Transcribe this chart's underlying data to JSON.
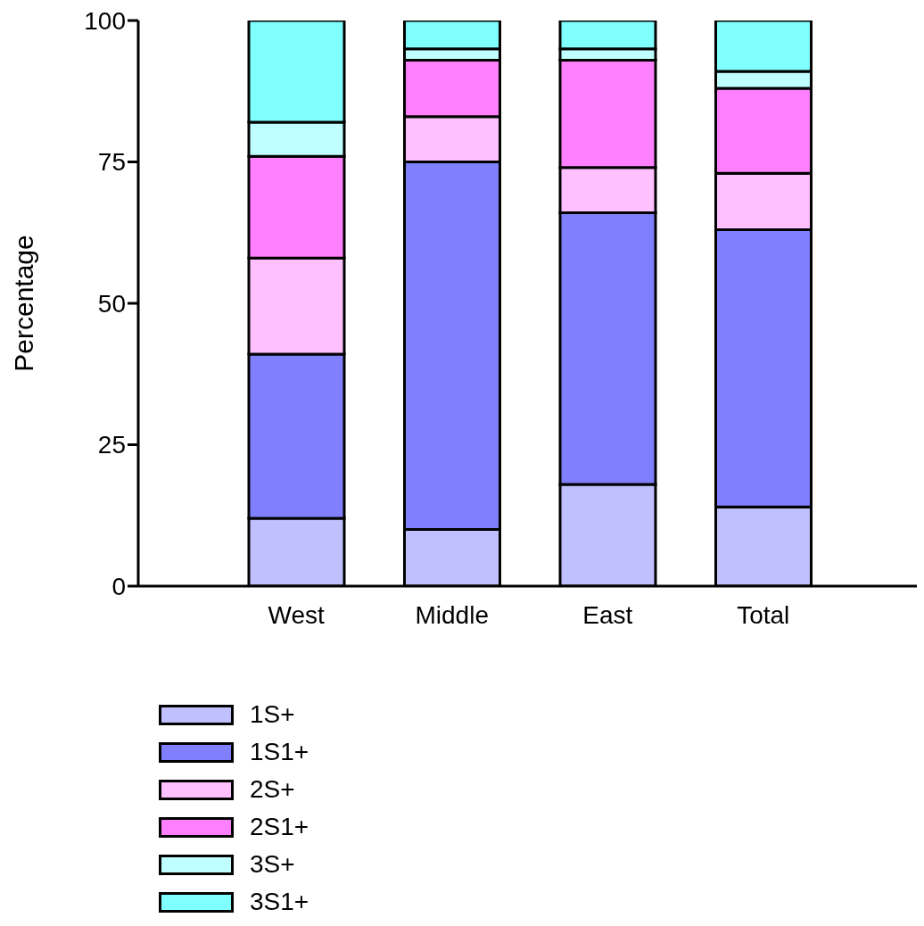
{
  "chart_data": {
    "type": "bar",
    "stacked": true,
    "ylabel": "Percentage",
    "categories": [
      "West",
      "Middle",
      "East",
      "Total"
    ],
    "ylim": [
      0,
      100
    ],
    "yticks": [
      0,
      25,
      50,
      75,
      100
    ],
    "grid": false,
    "legend": "bottom left",
    "series": [
      {
        "name": "1S+",
        "color": "#c0c0ff",
        "values": [
          12,
          10,
          18,
          14
        ]
      },
      {
        "name": "1S1+",
        "color": "#8080ff",
        "values": [
          29,
          65,
          48,
          49
        ]
      },
      {
        "name": "2S+",
        "color": "#ffc0ff",
        "values": [
          17,
          8,
          8,
          10
        ]
      },
      {
        "name": "2S1+",
        "color": "#ff80ff",
        "values": [
          18,
          10,
          19,
          15
        ]
      },
      {
        "name": "3S+",
        "color": "#c0ffff",
        "values": [
          6,
          2,
          2,
          3
        ]
      },
      {
        "name": "3S1+",
        "color": "#80ffff",
        "values": [
          18,
          5,
          5,
          9
        ]
      }
    ]
  }
}
